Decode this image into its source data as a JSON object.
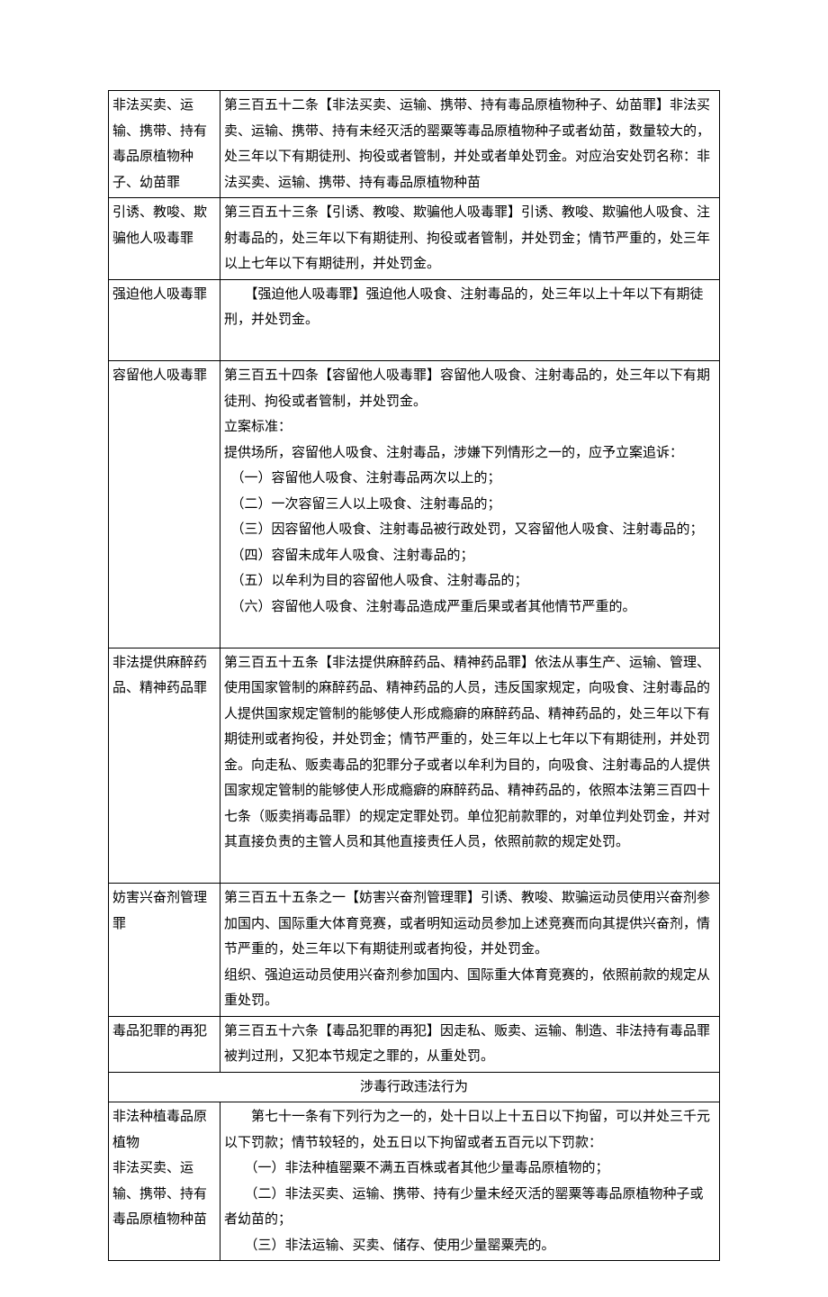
{
  "rows": [
    {
      "left": "非法买卖、运输、携带、持有毒品原植物种子、幼苗罪",
      "right": "第三百五十二条【非法买卖、运输、携带、持有毒品原植物种子、幼苗罪】非法买卖、运输、携带、持有未经灭活的罂粟等毒品原植物种子或者幼苗，数量较大的，处三年以下有期徒刑、拘役或者管制，并处或者单处罚金。对应治安处罚名称：非法买卖、运输、携带、持有毒品原植物种苗"
    },
    {
      "left": "引诱、教唆、欺骗他人吸毒罪",
      "right": "第三百五十三条【引诱、教唆、欺骗他人吸毒罪】引诱、教唆、欺骗他人吸食、注射毒品的，处三年以下有期徒刑、拘役或者管制，并处罚金；情节严重的，处三年以上七年以下有期徒刑，并处罚金。"
    },
    {
      "left": "强迫他人吸毒罪",
      "right": "　　【强迫他人吸毒罪】强迫他人吸食、注射毒品的，处三年以上十年以下有期徒刑，并处罚金。"
    },
    {
      "left": "容留他人吸毒罪",
      "right": "第三百五十四条【容留他人吸毒罪】容留他人吸食、注射毒品的，处三年以下有期徒刑、拘役或者管制，并处罚金。\n立案标准：\n提供场所，容留他人吸食、注射毒品，涉嫌下列情形之一的，应予立案追诉：\n　（一）容留他人吸食、注射毒品两次以上的；\n　（二）一次容留三人以上吸食、注射毒品的；\n　（三）因容留他人吸食、注射毒品被行政处罚，又容留他人吸食、注射毒品的；\n　（四）容留未成年人吸食、注射毒品的；\n　（五）以牟利为目的容留他人吸食、注射毒品的；\n　（六）容留他人吸食、注射毒品造成严重后果或者其他情节严重的。"
    },
    {
      "left": "非法提供麻醉药品、精神药品罪",
      "right": "第三百五十五条【非法提供麻醉药品、精神药品罪】依法从事生产、运输、管理、使用国家管制的麻醉药品、精神药品的人员，违反国家规定，向吸食、注射毒品的人提供国家规定管制的能够使人形成瘾癖的麻醉药品、精神药品的，处三年以下有期徒刑或者拘役，并处罚金；情节严重的，处三年以上七年以下有期徒刑，并处罚金。向走私、贩卖毒品的犯罪分子或者以牟利为目的，向吸食、注射毒品的人提供国家规定管制的能够使人形成瘾癖的麻醉药品、精神药品的，依照本法第三百四十七条（贩卖捎毒品罪）的规定定罪处罚。单位犯前款罪的，对单位判处罚金，并对其直接负责的主管人员和其他直接责任人员，依照前款的规定处罚。"
    },
    {
      "left": "妨害兴奋剂管理罪",
      "right": "第三百五十五条之一【妨害兴奋剂管理罪】引诱、教唆、欺骗运动员使用兴奋剂参加国内、国际重大体育竞赛，或者明知运动员参加上述竞赛而向其提供兴奋剂，情节严重的，处三年以下有期徒刑或者拘役，并处罚金。\n组织、强迫运动员使用兴奋剂参加国内、国际重大体育竞赛的，依照前款的规定从重处罚。"
    },
    {
      "left": "毒品犯罪的再犯",
      "right": "第三百五十六条【毒品犯罪的再犯】因走私、贩卖、运输、制造、非法持有毒品罪被判过刑，又犯本节规定之罪的，从重处罚。"
    }
  ],
  "section_header": "涉毒行政违法行为",
  "row_last": {
    "left": "非法种植毒品原植物\n非法买卖、运输、携带、持有毒品原植物种苗",
    "right": "　　第七十一条有下列行为之一的，处十日以上十五日以下拘留，可以并处三千元以下罚款；情节较轻的，处五日以下拘留或者五百元以下罚款：\n　　（一）非法种植罂粟不满五百株或者其他少量毒品原植物的；\n　　（二）非法买卖、运输、携带、持有少量未经灭活的罂粟等毒品原植物种子或者幼苗的；\n　　（三）非法运输、买卖、储存、使用少量罂粟壳的。"
  }
}
